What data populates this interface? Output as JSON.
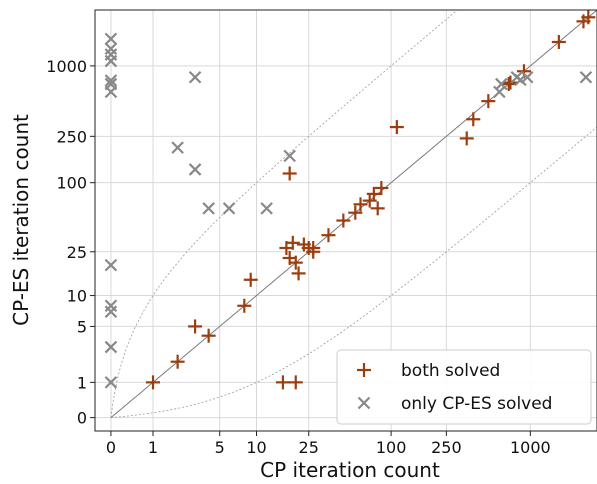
{
  "chart_data": {
    "type": "scatter",
    "xlabel": "CP iteration count",
    "ylabel": "CP-ES iteration count",
    "scale": "symlog",
    "xlim": [
      -0.3,
      3000
    ],
    "ylim": [
      -0.3,
      3000
    ],
    "x_ticks": [
      {
        "value": 0,
        "label": "0"
      },
      {
        "value": 1,
        "label": "1"
      },
      {
        "value": 5,
        "label": "5"
      },
      {
        "value": 10,
        "label": "10"
      },
      {
        "value": 25,
        "label": "25"
      },
      {
        "value": 100,
        "label": "100"
      },
      {
        "value": 250,
        "label": "250"
      },
      {
        "value": 1000,
        "label": "1000"
      }
    ],
    "y_ticks": [
      {
        "value": 0,
        "label": "0"
      },
      {
        "value": 1,
        "label": "1"
      },
      {
        "value": 5,
        "label": "5"
      },
      {
        "value": 10,
        "label": "10"
      },
      {
        "value": 25,
        "label": "25"
      },
      {
        "value": 100,
        "label": "100"
      },
      {
        "value": 250,
        "label": "250"
      },
      {
        "value": 1000,
        "label": "1000"
      }
    ],
    "grid": true,
    "reference_lines": [
      "y = x",
      "y = 10x",
      "y = x / 10"
    ],
    "legend": {
      "position": "lower-right"
    },
    "series": [
      {
        "name": "both solved",
        "marker": "plus",
        "color": "#9c3d0e",
        "points": [
          [
            1,
            1
          ],
          [
            2,
            2
          ],
          [
            3,
            5
          ],
          [
            4,
            4
          ],
          [
            8,
            8
          ],
          [
            9,
            14
          ],
          [
            16,
            1
          ],
          [
            20,
            1
          ],
          [
            18,
            120
          ],
          [
            17,
            27
          ],
          [
            18,
            22
          ],
          [
            19,
            30
          ],
          [
            20,
            20
          ],
          [
            21,
            16
          ],
          [
            23,
            29
          ],
          [
            25,
            27
          ],
          [
            27,
            25
          ],
          [
            27,
            27
          ],
          [
            35,
            35
          ],
          [
            45,
            47
          ],
          [
            55,
            55
          ],
          [
            60,
            65
          ],
          [
            70,
            70
          ],
          [
            75,
            80
          ],
          [
            80,
            60
          ],
          [
            85,
            90
          ],
          [
            110,
            300
          ],
          [
            350,
            240
          ],
          [
            390,
            350
          ],
          [
            500,
            500
          ],
          [
            700,
            700
          ],
          [
            720,
            720
          ],
          [
            900,
            900
          ],
          [
            1600,
            1600
          ],
          [
            2400,
            2400
          ],
          [
            2600,
            2600
          ]
        ]
      },
      {
        "name": "only CP-ES solved",
        "marker": "x",
        "color": "#888888",
        "points": [
          [
            0,
            1
          ],
          [
            0,
            3
          ],
          [
            0,
            7
          ],
          [
            0,
            8
          ],
          [
            0,
            19
          ],
          [
            0,
            600
          ],
          [
            0,
            700
          ],
          [
            0,
            750
          ],
          [
            0,
            1100
          ],
          [
            0,
            1250
          ],
          [
            0,
            1400
          ],
          [
            0,
            1700
          ],
          [
            2,
            200
          ],
          [
            3,
            800
          ],
          [
            3,
            130
          ],
          [
            4,
            60
          ],
          [
            6,
            60
          ],
          [
            12,
            60
          ],
          [
            18,
            170
          ],
          [
            600,
            600
          ],
          [
            620,
            700
          ],
          [
            800,
            800
          ],
          [
            850,
            760
          ],
          [
            950,
            800
          ],
          [
            2500,
            800
          ]
        ]
      }
    ]
  }
}
